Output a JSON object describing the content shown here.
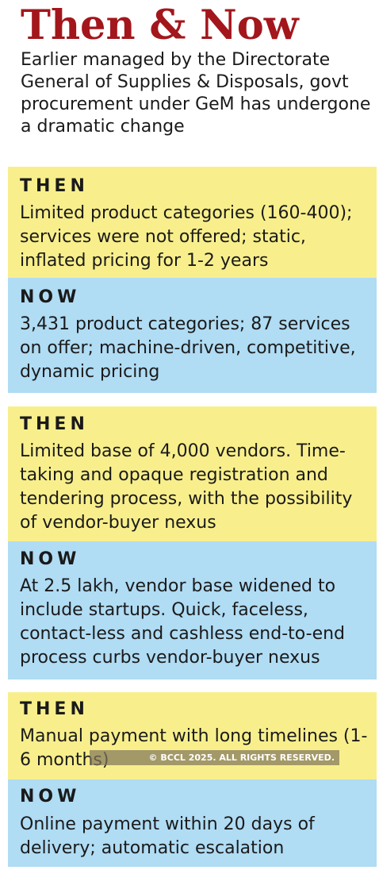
{
  "header": {
    "title": "Then & Now",
    "subtitle": "Earlier managed by the Directorate General of Supplies & Disposals, govt procurement under GeM has undergone a dramatic change"
  },
  "labels": {
    "then": "THEN",
    "now": "NOW"
  },
  "sections": [
    {
      "then": "Limited product categories (160-400); services were not offered; static, inflated pricing for 1-2 years",
      "now": "3,431 product categories; 87 services on offer; machine-driven, competitive, dynamic pricing"
    },
    {
      "then": "Limited base of 4,000 vendors. Time-taking and opaque registration and tendering process, with the possibility of vendor-buyer nexus",
      "now": "At 2.5 lakh, vendor base widened to include startups. Quick, faceless, contact-less and cashless end-to-end process curbs vendor-buyer nexus"
    },
    {
      "then": "Manual payment with long timelines (1-6 months)",
      "now": "Online payment within 20 days of delivery; automatic escalation"
    }
  ],
  "watermark": "© BCCL 2025. ALL RIGHTS RESERVED.",
  "colors": {
    "title": "#a3161b",
    "then_background": "#f8ef8c",
    "now_background": "#b0dcf4"
  }
}
